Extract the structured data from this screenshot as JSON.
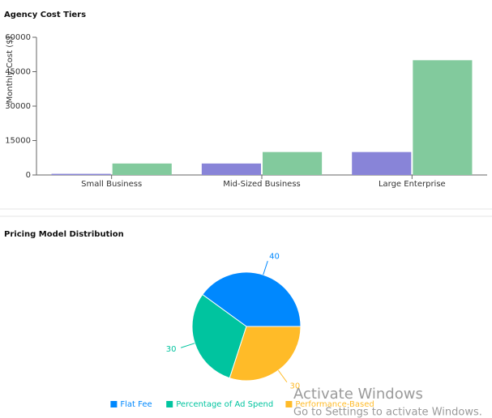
{
  "chart_data": [
    {
      "type": "bar",
      "title": "Agency Cost Tiers",
      "y_label": "Monthly Cost ($)",
      "categories": [
        "Small Business",
        "Mid-Sized Business",
        "Large Enterprise"
      ],
      "series": [
        {
          "color": "#8884d8",
          "values": [
            500,
            5000,
            10000
          ]
        },
        {
          "color": "#82ca9d",
          "values": [
            5000,
            10000,
            50000
          ]
        }
      ],
      "ylim": [
        0,
        60000
      ],
      "yticks": [
        0,
        15000,
        30000,
        45000,
        60000
      ]
    },
    {
      "type": "pie",
      "title": "Pricing Model Distribution",
      "categories": [
        "Flat Fee",
        "Percentage of Ad Spend",
        "Performance-Based"
      ],
      "values": [
        40,
        30,
        30
      ],
      "colors": [
        "#0088fe",
        "#00c49f",
        "#ffbb28"
      ]
    }
  ],
  "watermark": {
    "title": "Activate Windows",
    "subtitle": "Go to Settings to activate Windows."
  }
}
